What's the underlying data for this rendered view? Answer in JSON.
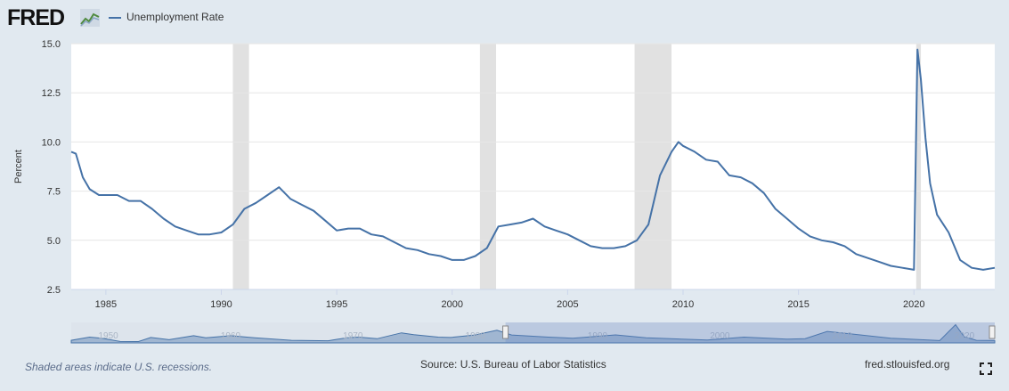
{
  "header": {
    "logo_text": "FRED",
    "legend_label": "Unemployment Rate"
  },
  "footer": {
    "note": "Shaded areas indicate U.S. recessions.",
    "source": "Source: U.S. Bureau of Labor Statistics",
    "site": "fred.stlouisfed.org"
  },
  "colors": {
    "series": "#4572a7",
    "recession": "#e1e1e1",
    "background": "#e1e9f0",
    "plot": "#ffffff"
  },
  "icons": {
    "logo_graph": "chart-line-icon",
    "fullscreen": "fullscreen-icon"
  },
  "chart_data": {
    "type": "line",
    "title": "",
    "xlabel": "",
    "ylabel": "Percent",
    "xlim": [
      1983.5,
      2023.5
    ],
    "ylim": [
      2.5,
      15.0
    ],
    "y_ticks": [
      "2.5",
      "5.0",
      "7.5",
      "10.0",
      "12.5",
      "15.0"
    ],
    "y_tick_values": [
      2.5,
      5.0,
      7.5,
      10.0,
      12.5,
      15.0
    ],
    "x_ticks": [
      "1985",
      "1990",
      "1995",
      "2000",
      "2005",
      "2010",
      "2015",
      "2020"
    ],
    "x_tick_values": [
      1985,
      1990,
      1995,
      2000,
      2005,
      2010,
      2015,
      2020
    ],
    "grid": true,
    "legend": "top-left",
    "recessions": [
      [
        1990.5,
        1991.2
      ],
      [
        2001.2,
        2001.9
      ],
      [
        2007.9,
        2009.5
      ],
      [
        2020.1,
        2020.3
      ]
    ],
    "series": [
      {
        "name": "Unemployment Rate",
        "x": [
          1983.5,
          1983.7,
          1984.0,
          1984.3,
          1984.7,
          1985.0,
          1985.5,
          1986.0,
          1986.5,
          1987.0,
          1987.5,
          1988.0,
          1988.5,
          1989.0,
          1989.5,
          1990.0,
          1990.5,
          1991.0,
          1991.5,
          1992.0,
          1992.5,
          1993.0,
          1993.5,
          1994.0,
          1994.5,
          1995.0,
          1995.5,
          1996.0,
          1996.5,
          1997.0,
          1997.5,
          1998.0,
          1998.5,
          1999.0,
          1999.5,
          2000.0,
          2000.5,
          2001.0,
          2001.5,
          2002.0,
          2002.5,
          2003.0,
          2003.5,
          2004.0,
          2004.5,
          2005.0,
          2005.5,
          2006.0,
          2006.5,
          2007.0,
          2007.5,
          2008.0,
          2008.5,
          2009.0,
          2009.5,
          2009.8,
          2010.0,
          2010.5,
          2011.0,
          2011.5,
          2012.0,
          2012.5,
          2013.0,
          2013.5,
          2014.0,
          2014.5,
          2015.0,
          2015.5,
          2016.0,
          2016.5,
          2017.0,
          2017.5,
          2018.0,
          2018.5,
          2019.0,
          2019.5,
          2020.0,
          2020.15,
          2020.3,
          2020.5,
          2020.7,
          2021.0,
          2021.5,
          2022.0,
          2022.5,
          2023.0,
          2023.5
        ],
        "values": [
          9.5,
          9.4,
          8.2,
          7.6,
          7.3,
          7.3,
          7.3,
          7.0,
          7.0,
          6.6,
          6.1,
          5.7,
          5.5,
          5.3,
          5.3,
          5.4,
          5.8,
          6.6,
          6.9,
          7.3,
          7.7,
          7.1,
          6.8,
          6.5,
          6.0,
          5.5,
          5.6,
          5.6,
          5.3,
          5.2,
          4.9,
          4.6,
          4.5,
          4.3,
          4.2,
          4.0,
          4.0,
          4.2,
          4.6,
          5.7,
          5.8,
          5.9,
          6.1,
          5.7,
          5.5,
          5.3,
          5.0,
          4.7,
          4.6,
          4.6,
          4.7,
          5.0,
          5.8,
          8.3,
          9.5,
          10.0,
          9.8,
          9.5,
          9.1,
          9.0,
          8.3,
          8.2,
          7.9,
          7.4,
          6.6,
          6.1,
          5.6,
          5.2,
          5.0,
          4.9,
          4.7,
          4.3,
          4.1,
          3.9,
          3.7,
          3.6,
          3.5,
          14.7,
          13.2,
          10.2,
          7.9,
          6.3,
          5.4,
          4.0,
          3.6,
          3.5,
          3.6
        ]
      }
    ],
    "navigator": {
      "x_ticks": [
        "1950",
        "1960",
        "1970",
        "1980",
        "1990",
        "2000",
        "2010",
        "2020"
      ],
      "x_tick_values": [
        1950,
        1960,
        1970,
        1980,
        1990,
        2000,
        2010,
        2020
      ],
      "xlim": [
        1948,
        2023.5
      ],
      "selected_range": [
        1983.5,
        2023.5
      ],
      "ylim": [
        2,
        15
      ],
      "x": [
        1948,
        1949.5,
        1950.5,
        1952,
        1953.5,
        1954.5,
        1956,
        1958,
        1959,
        1961,
        1963,
        1966,
        1969,
        1970.5,
        1971.5,
        1973,
        1975,
        1976,
        1978,
        1979,
        1981,
        1982.8,
        1984,
        1987,
        1989,
        1992.5,
        1995,
        2000,
        2003,
        2006.5,
        2008,
        2009.8,
        2012,
        2015,
        2019,
        2020.3,
        2020.6,
        2021,
        2022,
        2023.5
      ],
      "values": [
        3.8,
        6.0,
        5.3,
        3.0,
        2.9,
        5.8,
        4.2,
        7.0,
        5.5,
        7.0,
        5.6,
        3.8,
        3.5,
        5.5,
        6.0,
        4.9,
        9.0,
        7.7,
        6.0,
        5.8,
        7.5,
        10.8,
        7.5,
        6.0,
        5.3,
        7.6,
        5.6,
        4.0,
        6.0,
        4.6,
        5.0,
        10.0,
        8.0,
        5.3,
        3.6,
        14.7,
        11.0,
        6.3,
        3.8,
        3.6
      ]
    }
  }
}
